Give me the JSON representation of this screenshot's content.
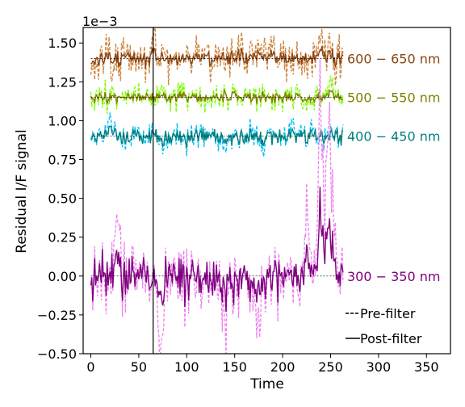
{
  "chart_data": {
    "type": "line",
    "xlabel": "Time",
    "ylabel": "Residual I/F signal",
    "offset_label": "1e−3",
    "xlim": [
      -8,
      375
    ],
    "ylim": [
      -0.5,
      1.6
    ],
    "y_scale_factor": 0.001,
    "xticks": [
      0,
      50,
      100,
      150,
      200,
      250,
      300,
      350
    ],
    "yticks": [
      -0.5,
      -0.25,
      0.0,
      0.25,
      0.5,
      0.75,
      1.0,
      1.25,
      1.5
    ],
    "ytick_labels": [
      "−0.50",
      "−0.25",
      "0.00",
      "0.25",
      "0.50",
      "0.75",
      "1.00",
      "1.25",
      "1.50"
    ],
    "vline_x": 65,
    "grid": false,
    "legend_placement": "bottom-right",
    "legend": [
      {
        "label": "Pre-filter",
        "dash": "dashed"
      },
      {
        "label": "Post-filter",
        "dash": "solid"
      }
    ],
    "bands": [
      {
        "label": "600 − 650 nm",
        "color": "#8b4513",
        "pre_color": "#cd853f",
        "baseline": 1.4,
        "pre_amp": 0.1,
        "post_amp": 0.035,
        "bursts": [
          [
            65,
            0.08
          ],
          [
            100,
            0.05
          ],
          [
            175,
            0.1
          ],
          [
            190,
            0.08
          ],
          [
            240,
            0.18
          ],
          [
            250,
            0.12
          ]
        ],
        "seed": 11
      },
      {
        "label": "500 − 550 nm",
        "color": "#808000",
        "pre_color": "#7cfc00",
        "baseline": 1.15,
        "pre_amp": 0.06,
        "post_amp": 0.025,
        "bursts": [
          [
            95,
            0.05
          ],
          [
            150,
            0.05
          ],
          [
            215,
            0.06
          ],
          [
            250,
            0.12
          ]
        ],
        "seed": 23
      },
      {
        "label": "400 − 450 nm",
        "color": "#008080",
        "pre_color": "#00bfff",
        "baseline": 0.9,
        "pre_amp": 0.06,
        "post_amp": 0.04,
        "bursts": [
          [
            20,
            0.1
          ],
          [
            75,
            -0.07
          ],
          [
            140,
            -0.08
          ],
          [
            178,
            -0.12
          ],
          [
            210,
            0.1
          ],
          [
            230,
            0.08
          ]
        ],
        "seed": 37
      },
      {
        "label": "300 − 350 nm",
        "color": "#800080",
        "pre_color": "#ee82ee",
        "baseline": 0.0,
        "pre_amp": 0.16,
        "post_amp": 0.1,
        "bursts": [
          [
            28,
            0.42
          ],
          [
            72,
            -0.5
          ],
          [
            140,
            -0.3
          ],
          [
            175,
            -0.35
          ],
          [
            225,
            0.55
          ],
          [
            240,
            1.35
          ],
          [
            248,
            1.1
          ],
          [
            253,
            0.55
          ]
        ],
        "seed": 53
      }
    ],
    "n_points": 264,
    "x_start": 0,
    "x_end": 263
  }
}
